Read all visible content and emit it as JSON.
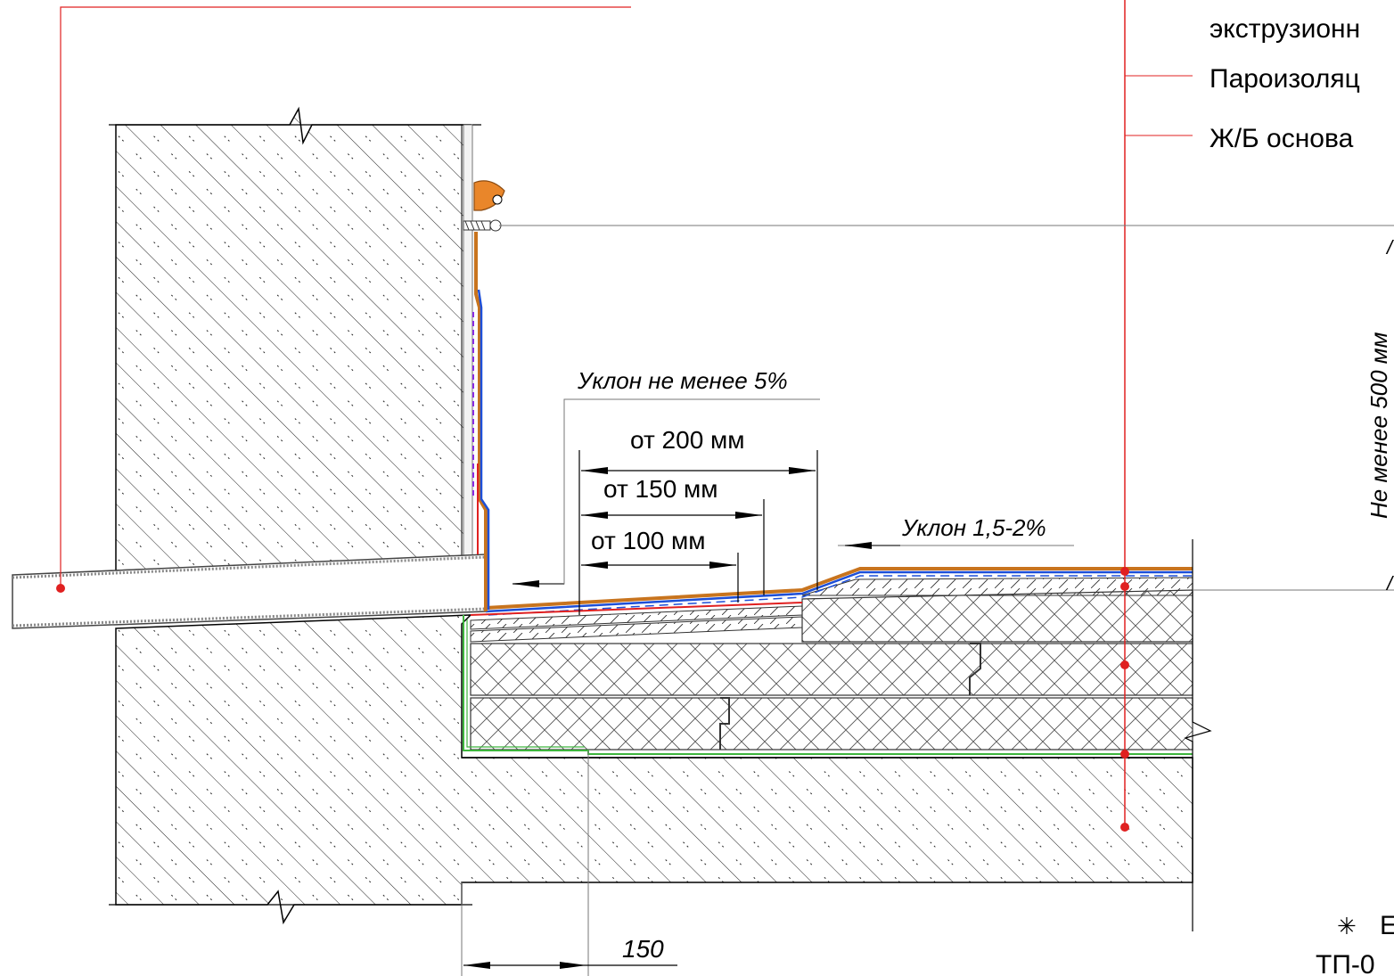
{
  "callouts": [
    {
      "text": "экструзионн"
    },
    {
      "text": "Пароизоляц"
    },
    {
      "text": "Ж/Б основа"
    }
  ],
  "slopes": {
    "parapet_slope": "Уклон не менее 5%",
    "roof_slope": "Уклон 1,5-2%"
  },
  "dimensions": {
    "d200": "от 200 мм",
    "d150": "от 150 мм",
    "d100": "от 100 мм",
    "bottom": "150",
    "vertical": "Не менее 500 мм"
  },
  "footer": {
    "star": "✳",
    "letter": "Е",
    "code": "ТП-0"
  },
  "colors": {
    "leader": "#e02020",
    "waterproof_blue": "#1d4fd8",
    "membrane_orange": "#c8741e",
    "separation_green": "#3db53d",
    "clamp_orange": "#e9862a"
  }
}
